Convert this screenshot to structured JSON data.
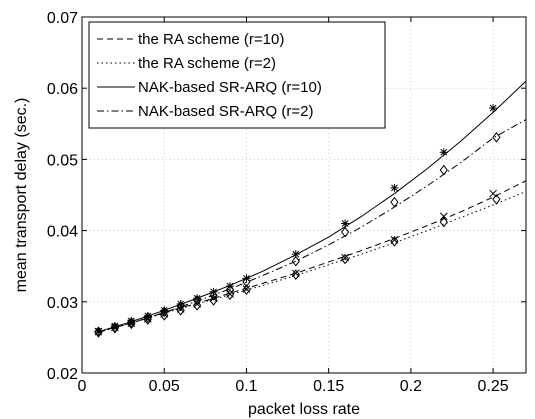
{
  "chart_data": {
    "type": "line",
    "title": "",
    "xlabel": "packet loss rate",
    "ylabel": "mean transport delay (sec.)",
    "xlim": [
      0,
      0.27
    ],
    "ylim": [
      0.02,
      0.07
    ],
    "x_ticks": [
      0,
      0.05,
      0.1,
      0.15,
      0.2,
      0.25
    ],
    "x_tick_labels": [
      "0",
      "0.05",
      "0.1",
      "0.15",
      "0.2",
      "0.25"
    ],
    "y_ticks": [
      0.02,
      0.03,
      0.04,
      0.05,
      0.06,
      0.07
    ],
    "y_tick_labels": [
      "0.02",
      "0.03",
      "0.04",
      "0.05",
      "0.06",
      "0.07"
    ],
    "grid": true,
    "legend_position": "top-left",
    "series": [
      {
        "name": "the RA scheme (r=10)",
        "line_style": "dashed",
        "marker": "x",
        "curve_x": [
          0.01,
          0.03,
          0.05,
          0.07,
          0.09,
          0.11,
          0.13,
          0.15,
          0.17,
          0.19,
          0.21,
          0.23,
          0.25,
          0.27
        ],
        "curve_y": [
          0.0258,
          0.027,
          0.0285,
          0.0298,
          0.0312,
          0.0326,
          0.034,
          0.0356,
          0.0372,
          0.0389,
          0.0407,
          0.0426,
          0.0447,
          0.047
        ],
        "points_x": [
          0.01,
          0.02,
          0.03,
          0.04,
          0.05,
          0.06,
          0.07,
          0.08,
          0.09,
          0.1,
          0.13,
          0.16,
          0.19,
          0.22,
          0.25
        ],
        "points_y": [
          0.0258,
          0.0264,
          0.027,
          0.0276,
          0.0283,
          0.029,
          0.0297,
          0.0305,
          0.0311,
          0.0318,
          0.034,
          0.0362,
          0.0387,
          0.042,
          0.0452
        ]
      },
      {
        "name": "the RA scheme (r=2)",
        "line_style": "dotted",
        "marker": "diamond",
        "curve_x": [
          0.01,
          0.03,
          0.05,
          0.07,
          0.09,
          0.11,
          0.13,
          0.15,
          0.17,
          0.19,
          0.21,
          0.23,
          0.25,
          0.27
        ],
        "curve_y": [
          0.0258,
          0.027,
          0.0284,
          0.0297,
          0.031,
          0.0323,
          0.0337,
          0.0352,
          0.0367,
          0.0383,
          0.04,
          0.0418,
          0.0436,
          0.0455
        ],
        "points_x": [
          0.01,
          0.02,
          0.03,
          0.04,
          0.05,
          0.06,
          0.07,
          0.08,
          0.09,
          0.1,
          0.13,
          0.16,
          0.19,
          0.22,
          0.252
        ],
        "points_y": [
          0.0257,
          0.0263,
          0.0269,
          0.0275,
          0.0281,
          0.0288,
          0.0295,
          0.0302,
          0.031,
          0.0317,
          0.0338,
          0.036,
          0.0385,
          0.0412,
          0.0444
        ]
      },
      {
        "name": "NAK-based SR-ARQ (r=10)",
        "line_style": "solid",
        "marker": "asterisk",
        "curve_x": [
          0.01,
          0.03,
          0.05,
          0.07,
          0.09,
          0.11,
          0.13,
          0.15,
          0.17,
          0.19,
          0.21,
          0.23,
          0.25,
          0.27
        ],
        "curve_y": [
          0.0258,
          0.0272,
          0.0288,
          0.0305,
          0.0323,
          0.0343,
          0.0366,
          0.0391,
          0.042,
          0.0452,
          0.0487,
          0.0525,
          0.0566,
          0.061
        ],
        "points_x": [
          0.01,
          0.02,
          0.03,
          0.04,
          0.05,
          0.06,
          0.07,
          0.08,
          0.09,
          0.1,
          0.13,
          0.16,
          0.19,
          0.22,
          0.25
        ],
        "points_y": [
          0.0259,
          0.0266,
          0.0273,
          0.028,
          0.0288,
          0.0297,
          0.0305,
          0.0314,
          0.0322,
          0.0333,
          0.0367,
          0.041,
          0.046,
          0.051,
          0.0572
        ]
      },
      {
        "name": "NAK-based SR-ARQ (r=2)",
        "line_style": "dashdot",
        "marker": "diamond",
        "curve_x": [
          0.01,
          0.03,
          0.05,
          0.07,
          0.09,
          0.11,
          0.13,
          0.15,
          0.17,
          0.19,
          0.21,
          0.23,
          0.25,
          0.27
        ],
        "curve_y": [
          0.0257,
          0.027,
          0.0285,
          0.0301,
          0.0318,
          0.0337,
          0.0357,
          0.038,
          0.0405,
          0.0433,
          0.0463,
          0.0495,
          0.053,
          0.0556
        ],
        "points_x": [
          0.01,
          0.02,
          0.03,
          0.04,
          0.05,
          0.06,
          0.07,
          0.08,
          0.09,
          0.1,
          0.13,
          0.16,
          0.19,
          0.22,
          0.252
        ],
        "points_y": [
          0.0258,
          0.0264,
          0.0271,
          0.0278,
          0.0286,
          0.0294,
          0.0302,
          0.0309,
          0.0317,
          0.0328,
          0.0357,
          0.0398,
          0.044,
          0.0485,
          0.0531
        ]
      }
    ]
  }
}
